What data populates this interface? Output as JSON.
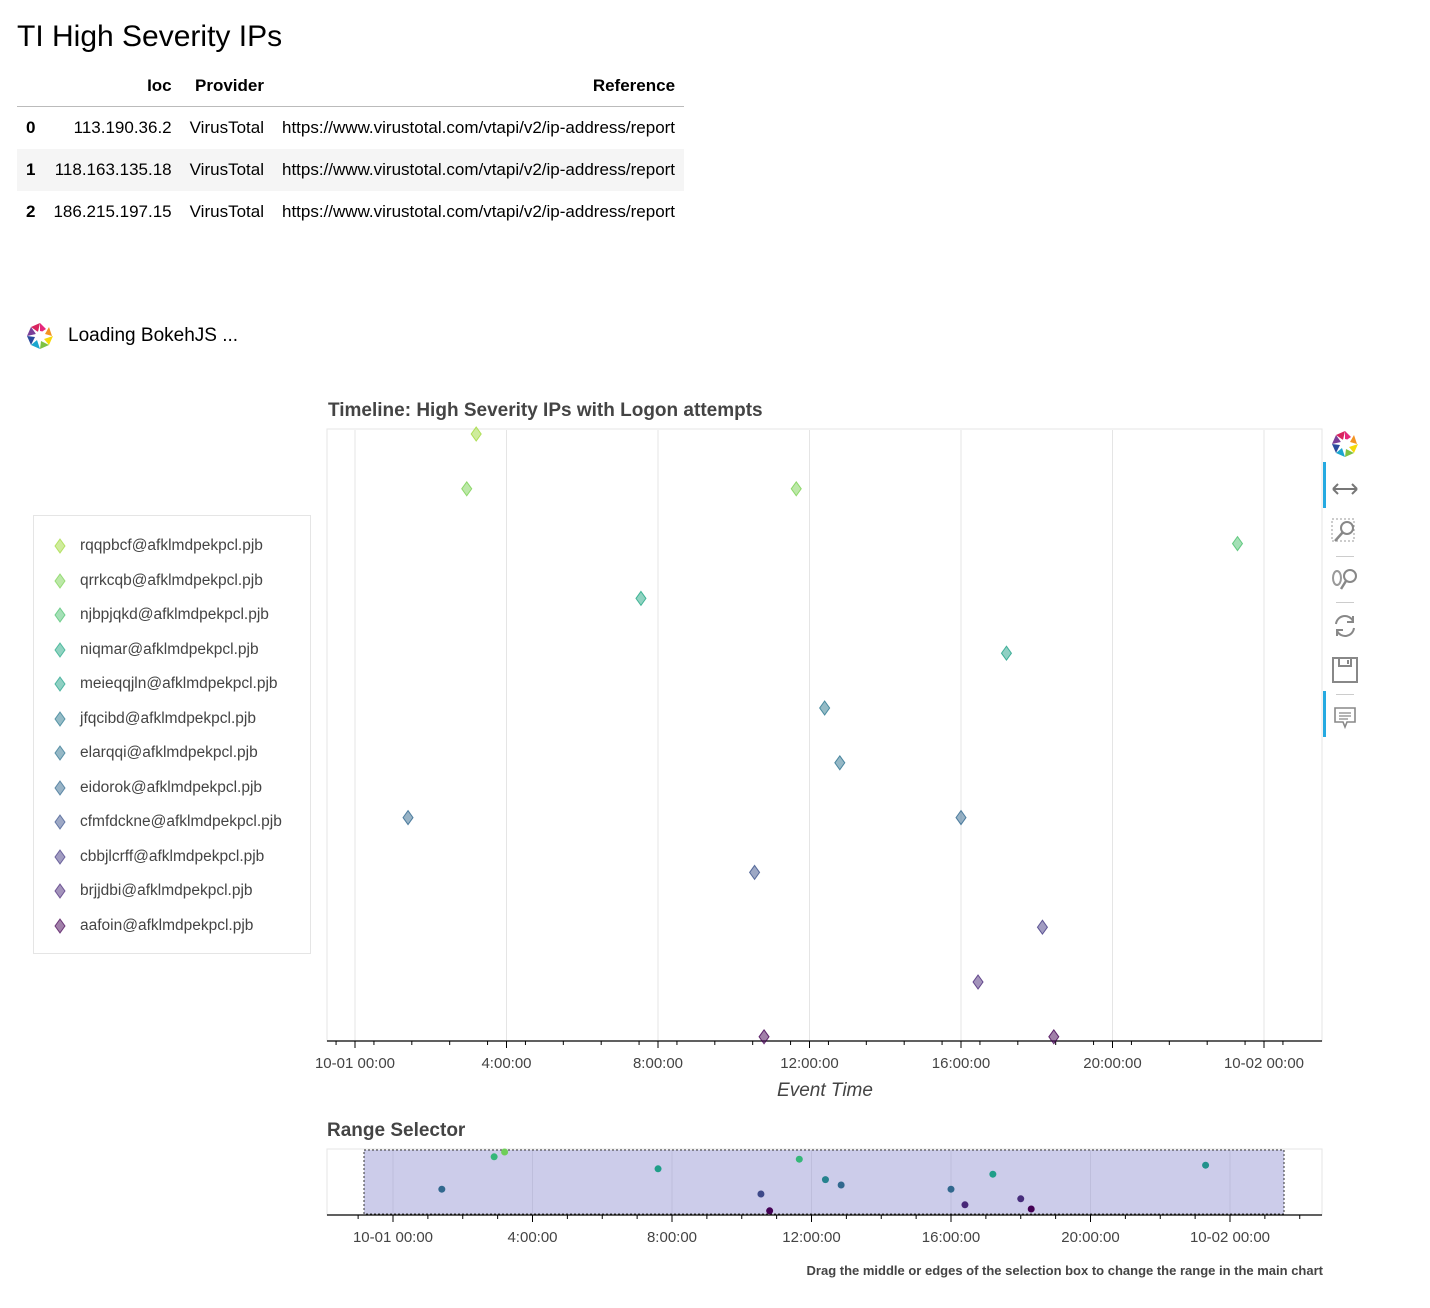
{
  "heading": "TI High Severity IPs",
  "table": {
    "columns": [
      "Ioc",
      "Provider",
      "Reference"
    ],
    "rows": [
      {
        "index": "0",
        "ioc": "113.190.36.2",
        "provider": "VirusTotal",
        "reference": "https://www.virustotal.com/vtapi/v2/ip-address/report"
      },
      {
        "index": "1",
        "ioc": "118.163.135.18",
        "provider": "VirusTotal",
        "reference": "https://www.virustotal.com/vtapi/v2/ip-address/report"
      },
      {
        "index": "2",
        "ioc": "186.215.197.15",
        "provider": "VirusTotal",
        "reference": "https://www.virustotal.com/vtapi/v2/ip-address/report"
      }
    ]
  },
  "loading_text": "Loading BokehJS ...",
  "toolbar": {
    "tools": [
      "bokeh-logo-icon",
      "xpan-icon",
      "box-zoom-icon",
      "wheel-zoom-icon",
      "reset-icon",
      "save-icon",
      "hover-icon"
    ],
    "active": [
      "xpan-icon",
      "hover-icon"
    ]
  },
  "help_text": "Drag the middle or edges of the selection box to change the range in the main chart",
  "chart_data": [
    {
      "type": "scatter",
      "title": "Timeline: High Severity IPs with Logon attempts",
      "xlabel": "Event Time",
      "ylabel": "",
      "x_ticks": [
        "10-01 00:00",
        "4:00:00",
        "8:00:00",
        "12:00:00",
        "16:00:00",
        "20:00:00",
        "10-02 00:00"
      ],
      "xlim_hours": [
        -0.75,
        25.5
      ],
      "grid": true,
      "legend_placement": "left",
      "marker": "diamond",
      "series": [
        {
          "name": "rqqpbcf@afklmdpekpcl.pjb",
          "color": "#a0da39",
          "hours": [
            3.2
          ]
        },
        {
          "name": "qrrkcqb@afklmdpekpcl.pjb",
          "color": "#7ad151",
          "hours": [
            2.95,
            11.65
          ]
        },
        {
          "name": "njbpjqkd@afklmdpekpcl.pjb",
          "color": "#4ac16d",
          "hours": [
            23.3
          ]
        },
        {
          "name": "niqmar@afklmdpekpcl.pjb",
          "color": "#22a884",
          "hours": [
            7.55
          ]
        },
        {
          "name": "meieqqjln@afklmdpekpcl.pjb",
          "color": "#1fa187",
          "hours": [
            17.2
          ]
        },
        {
          "name": "jfqcibd@afklmdpekpcl.pjb",
          "color": "#2a788e",
          "hours": [
            12.4
          ]
        },
        {
          "name": "elarqqi@afklmdpekpcl.pjb",
          "color": "#2c728e",
          "hours": [
            12.8
          ]
        },
        {
          "name": "eidorok@afklmdpekpcl.pjb",
          "color": "#31688e",
          "hours": [
            1.4,
            16.0
          ]
        },
        {
          "name": "cfmfdckne@afklmdpekpcl.pjb",
          "color": "#3b528b",
          "hours": [
            10.55
          ]
        },
        {
          "name": "cbbjlcrff@afklmdpekpcl.pjb",
          "color": "#443983",
          "hours": [
            18.15
          ]
        },
        {
          "name": "brjjdbi@afklmdpekpcl.pjb",
          "color": "#482878",
          "hours": [
            16.45
          ]
        },
        {
          "name": "aafoin@afklmdpekpcl.pjb",
          "color": "#440154",
          "hours": [
            10.8,
            18.45
          ]
        }
      ]
    },
    {
      "type": "scatter",
      "title": "Range Selector",
      "x_ticks": [
        "10-01 00:00",
        "4:00:00",
        "8:00:00",
        "12:00:00",
        "16:00:00",
        "20:00:00",
        "10-02 00:00"
      ],
      "selection": true,
      "points": [
        {
          "hours": 1.4,
          "level": 0.62,
          "color": "#31688e"
        },
        {
          "hours": 2.9,
          "level": 0.08,
          "color": "#35b779"
        },
        {
          "hours": 3.2,
          "level": 0.0,
          "color": "#6ece58"
        },
        {
          "hours": 7.6,
          "level": 0.28,
          "color": "#1f9e89"
        },
        {
          "hours": 11.65,
          "level": 0.12,
          "color": "#35b779"
        },
        {
          "hours": 12.4,
          "level": 0.46,
          "color": "#26828e"
        },
        {
          "hours": 12.85,
          "level": 0.55,
          "color": "#31688e"
        },
        {
          "hours": 10.55,
          "level": 0.7,
          "color": "#3e4989"
        },
        {
          "hours": 10.8,
          "level": 0.98,
          "color": "#440154"
        },
        {
          "hours": 16.0,
          "level": 0.62,
          "color": "#31688e"
        },
        {
          "hours": 16.4,
          "level": 0.88,
          "color": "#482878"
        },
        {
          "hours": 17.2,
          "level": 0.37,
          "color": "#1f9e89"
        },
        {
          "hours": 18.0,
          "level": 0.78,
          "color": "#472d7b"
        },
        {
          "hours": 18.3,
          "level": 0.95,
          "color": "#440154"
        },
        {
          "hours": 23.3,
          "level": 0.22,
          "color": "#21918c"
        }
      ]
    }
  ]
}
